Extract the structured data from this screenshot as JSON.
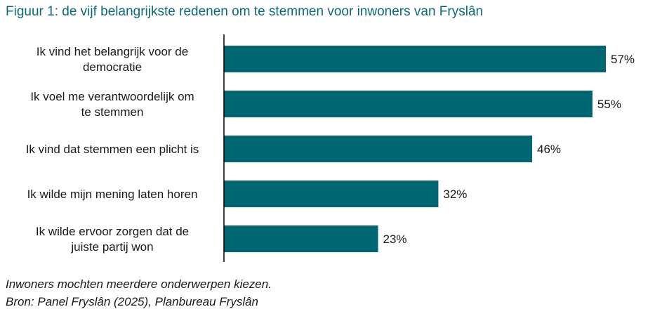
{
  "title": "Figuur 1: de vijf belangrijkste redenen om te stemmen voor inwoners van Fryslân",
  "footnotes": {
    "note": "Inwoners mochten meerdere onderwerpen kiezen.",
    "source": "Bron: Panel Fryslân (2025), Planbureau Fryslân"
  },
  "colors": {
    "bar": "#006672",
    "title": "#0b6a74"
  },
  "chart_data": {
    "type": "bar",
    "orientation": "horizontal",
    "categories": [
      [
        "Ik vind het belangrijk voor de",
        "democratie"
      ],
      [
        "Ik voel me verantwoordelijk om",
        "te stemmen"
      ],
      [
        "Ik vind dat stemmen een plicht is"
      ],
      [
        "Ik wilde mijn mening laten horen"
      ],
      [
        "Ik wilde ervoor zorgen dat de",
        "juiste partij won"
      ]
    ],
    "values": [
      57,
      55,
      46,
      32,
      23
    ],
    "value_labels": [
      "57%",
      "55%",
      "46%",
      "32%",
      "23%"
    ],
    "unit": "%",
    "xlim": [
      0,
      100
    ],
    "grid": false,
    "legend": "none"
  }
}
